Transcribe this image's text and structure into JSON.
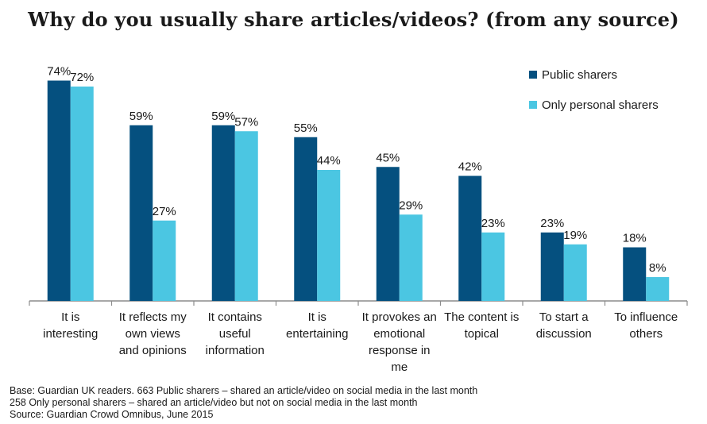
{
  "chart_data": {
    "type": "bar",
    "title": "Why do you usually share articles/videos? (from any source)",
    "categories": [
      [
        "It is",
        "interesting"
      ],
      [
        "It reflects my",
        "own views",
        "and opinions"
      ],
      [
        "It contains",
        "useful",
        "information"
      ],
      [
        "It is",
        "entertaining"
      ],
      [
        "It provokes an",
        "emotional",
        "response in",
        "me"
      ],
      [
        "The content is",
        "topical"
      ],
      [
        "To start a",
        "discussion"
      ],
      [
        "To influence",
        "others"
      ]
    ],
    "series": [
      {
        "name": "Public sharers",
        "color": "#05507f",
        "values": [
          74,
          59,
          59,
          55,
          45,
          42,
          23,
          18
        ]
      },
      {
        "name": "Only personal sharers",
        "color": "#4bc6e2",
        "values": [
          72,
          27,
          57,
          44,
          29,
          23,
          19,
          8
        ]
      }
    ],
    "value_suffix": "%",
    "ylim": [
      0,
      80
    ],
    "grid": false,
    "legend_position": "top-right"
  },
  "footer": {
    "line1": "Base: Guardian UK readers. 663 Public sharers – shared an article/video on social media in the last month",
    "line2": "258 Only personal sharers – shared an article/video but not on social media in the last month",
    "line3": "Source: Guardian Crowd Omnibus, June 2015"
  }
}
